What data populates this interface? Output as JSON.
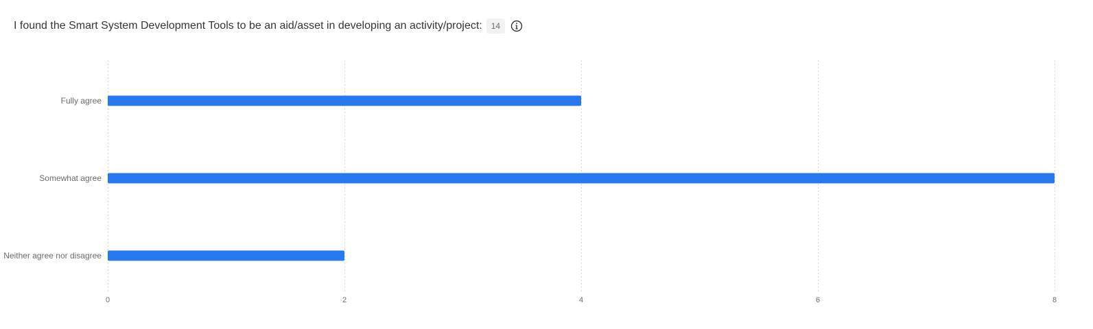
{
  "header": {
    "title": "I found the Smart System Development Tools to be an aid/asset in developing an activity/project:",
    "count": "14",
    "info_icon": "info-icon"
  },
  "colors": {
    "bar": "#2878f0",
    "grid": "#d9d9d9"
  },
  "chart_data": {
    "type": "bar",
    "orientation": "horizontal",
    "categories": [
      "Fully agree",
      "Somewhat agree",
      "Neither agree nor disagree"
    ],
    "values": [
      4,
      8,
      2
    ],
    "xlim": [
      0,
      8
    ],
    "xticks": [
      0,
      2,
      4,
      6,
      8
    ],
    "grid": true,
    "title": "",
    "xlabel": "",
    "ylabel": ""
  }
}
